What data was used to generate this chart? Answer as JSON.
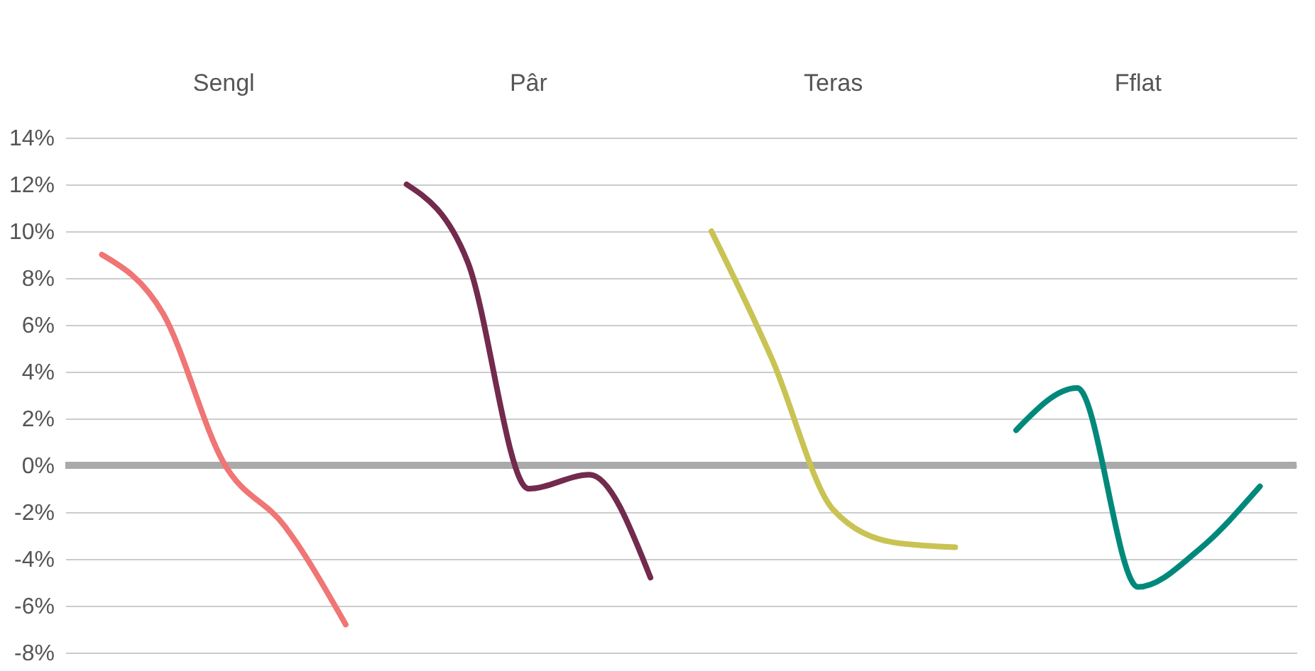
{
  "chart_data": {
    "type": "line",
    "categories": [
      null,
      null,
      null,
      null,
      null,
      null,
      null,
      null,
      null,
      null,
      null,
      null,
      null,
      null,
      null,
      null,
      null,
      null,
      null,
      null
    ],
    "series": [
      {
        "color": "#f07575",
        "values": [
          9,
          6.5,
          0.1,
          -2.6,
          -6.8,
          null,
          null,
          null,
          null,
          null,
          null,
          null,
          null,
          null,
          null,
          null,
          null,
          null,
          null,
          null
        ]
      },
      {
        "color": "#722a4d",
        "values": [
          null,
          null,
          null,
          null,
          null,
          12,
          8.7,
          -1.0,
          -0.4,
          -4.8,
          null,
          null,
          null,
          null,
          null,
          null,
          null,
          null,
          null,
          null
        ]
      },
      {
        "color": "#c9c354",
        "values": [
          null,
          null,
          null,
          null,
          null,
          null,
          null,
          null,
          null,
          null,
          10,
          4.5,
          -1.9,
          -3.3,
          -3.5,
          null,
          null,
          null,
          null,
          null
        ]
      },
      {
        "color": "#00897b",
        "values": [
          null,
          null,
          null,
          null,
          null,
          null,
          null,
          null,
          null,
          null,
          null,
          null,
          null,
          null,
          null,
          1.5,
          3.3,
          -5.2,
          -3.6,
          -0.9
        ]
      }
    ],
    "annotations": [
      "Sengl",
      "Pâr",
      "Teras",
      "Fflat"
    ],
    "ylim": [
      -8,
      14
    ],
    "yticks": [
      {
        "value": -8,
        "label": "-8%"
      },
      {
        "value": -6,
        "label": "-6%"
      },
      {
        "value": -4,
        "label": "-4%"
      },
      {
        "value": -2,
        "label": "-2%"
      },
      {
        "value": 0,
        "label": "0%"
      },
      {
        "value": 2,
        "label": "2%"
      },
      {
        "value": 4,
        "label": "4%"
      },
      {
        "value": 6,
        "label": "6%"
      },
      {
        "value": 8,
        "label": "8%"
      },
      {
        "value": 10,
        "label": "10%"
      },
      {
        "value": 12,
        "label": "12%"
      },
      {
        "value": 14,
        "label": "14%"
      }
    ],
    "grid": "y",
    "tick_labels": "y",
    "ref_lines": [
      {
        "axis": "y",
        "value": 0,
        "color": "#aaaaaa"
      }
    ]
  }
}
